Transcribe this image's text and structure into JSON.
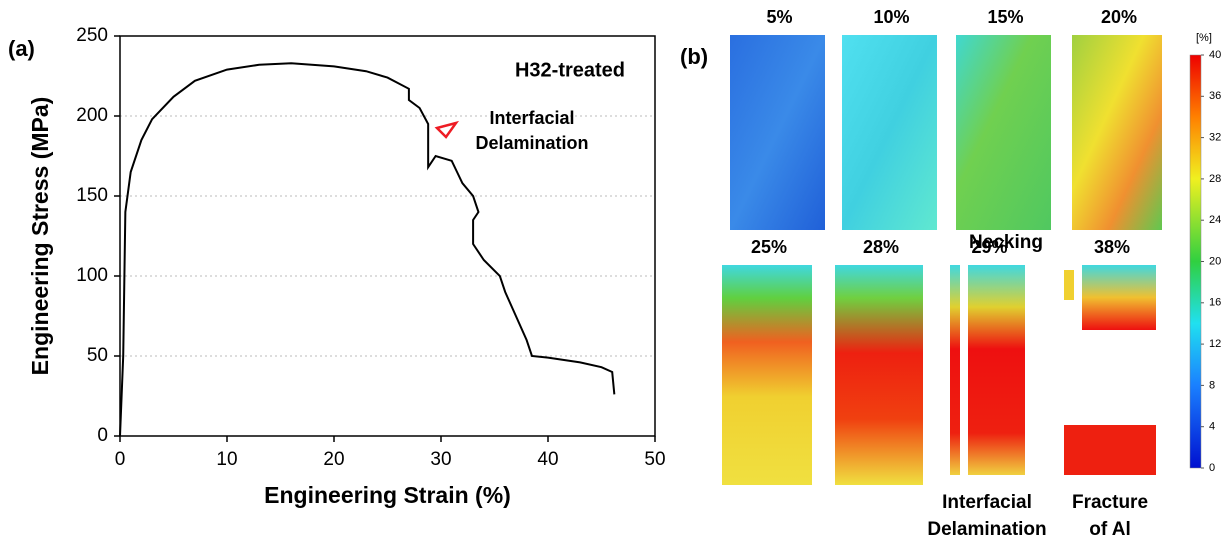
{
  "chart_data": [
    {
      "type": "line",
      "panel_label": "(a)",
      "title": "H32-treated",
      "annotation_lines": [
        "Interfacial",
        "Delamination"
      ],
      "annotation_color": "#ee1c24",
      "x_label": "Engineering Strain (%)",
      "y_label": "Engineering Stress (MPa)",
      "xlim": [
        0,
        50
      ],
      "ylim": [
        0,
        250
      ],
      "xticks": [
        0,
        10,
        20,
        30,
        40,
        50
      ],
      "yticks": [
        0,
        50,
        100,
        150,
        200,
        250
      ],
      "grid": true,
      "color": "#000000",
      "x": [
        0,
        0.3,
        0.5,
        1,
        2,
        3,
        5,
        7,
        10,
        13,
        16,
        20,
        23,
        25,
        27,
        27,
        28,
        28.8,
        28.8,
        29.5,
        31,
        31.5,
        32,
        33,
        33.5,
        33,
        33,
        34,
        35.5,
        36,
        37,
        38,
        38.5,
        40,
        43,
        45,
        46,
        46.2
      ],
      "y": [
        0,
        50,
        140,
        165,
        185,
        198,
        212,
        222,
        229,
        232,
        233,
        231,
        228,
        224,
        217,
        210,
        205,
        195,
        168,
        175,
        172,
        165,
        158,
        150,
        140,
        135,
        120,
        110,
        100,
        90,
        75,
        60,
        50,
        49,
        46,
        43,
        40,
        26
      ]
    },
    {
      "type": "heatmap",
      "panel_label": "(b)",
      "frames": [
        "5%",
        "10%",
        "15%",
        "20%",
        "25%",
        "28%",
        "29%",
        "38%"
      ],
      "notes": [
        [
          "Necking"
        ],
        [
          "Interfacial",
          "Delamination"
        ],
        [
          "Fracture",
          "of Al"
        ]
      ],
      "colorbar_unit": "[%]",
      "clim": [
        0,
        40
      ],
      "cticks": [
        0,
        4,
        8,
        12,
        16,
        20,
        24,
        28,
        32,
        36,
        40
      ]
    }
  ]
}
